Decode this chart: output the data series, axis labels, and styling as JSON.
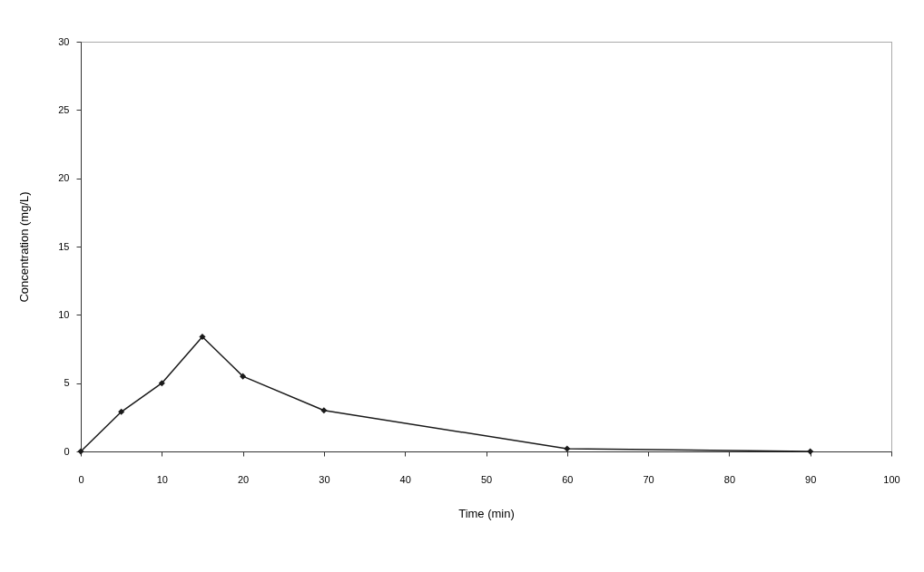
{
  "chart_data": {
    "type": "line",
    "xlabel": "Time (min)",
    "ylabel": "Concentration (mg/L)",
    "x": [
      0,
      5,
      10,
      15,
      20,
      30,
      60,
      90
    ],
    "series": [
      {
        "color": "#1a1a1a",
        "values": [
          0,
          2.9,
          5,
          8.4,
          5.5,
          3,
          0.2,
          0
        ]
      }
    ],
    "xlim": [
      0,
      100
    ],
    "xticks": [
      0,
      10,
      20,
      30,
      40,
      50,
      60,
      70,
      80,
      90,
      100
    ],
    "ylim": [
      0,
      30
    ],
    "yticks": [
      0,
      5,
      10,
      15,
      20,
      25,
      30
    ],
    "grid": false,
    "marker": "diamond",
    "line_style": "solid"
  }
}
